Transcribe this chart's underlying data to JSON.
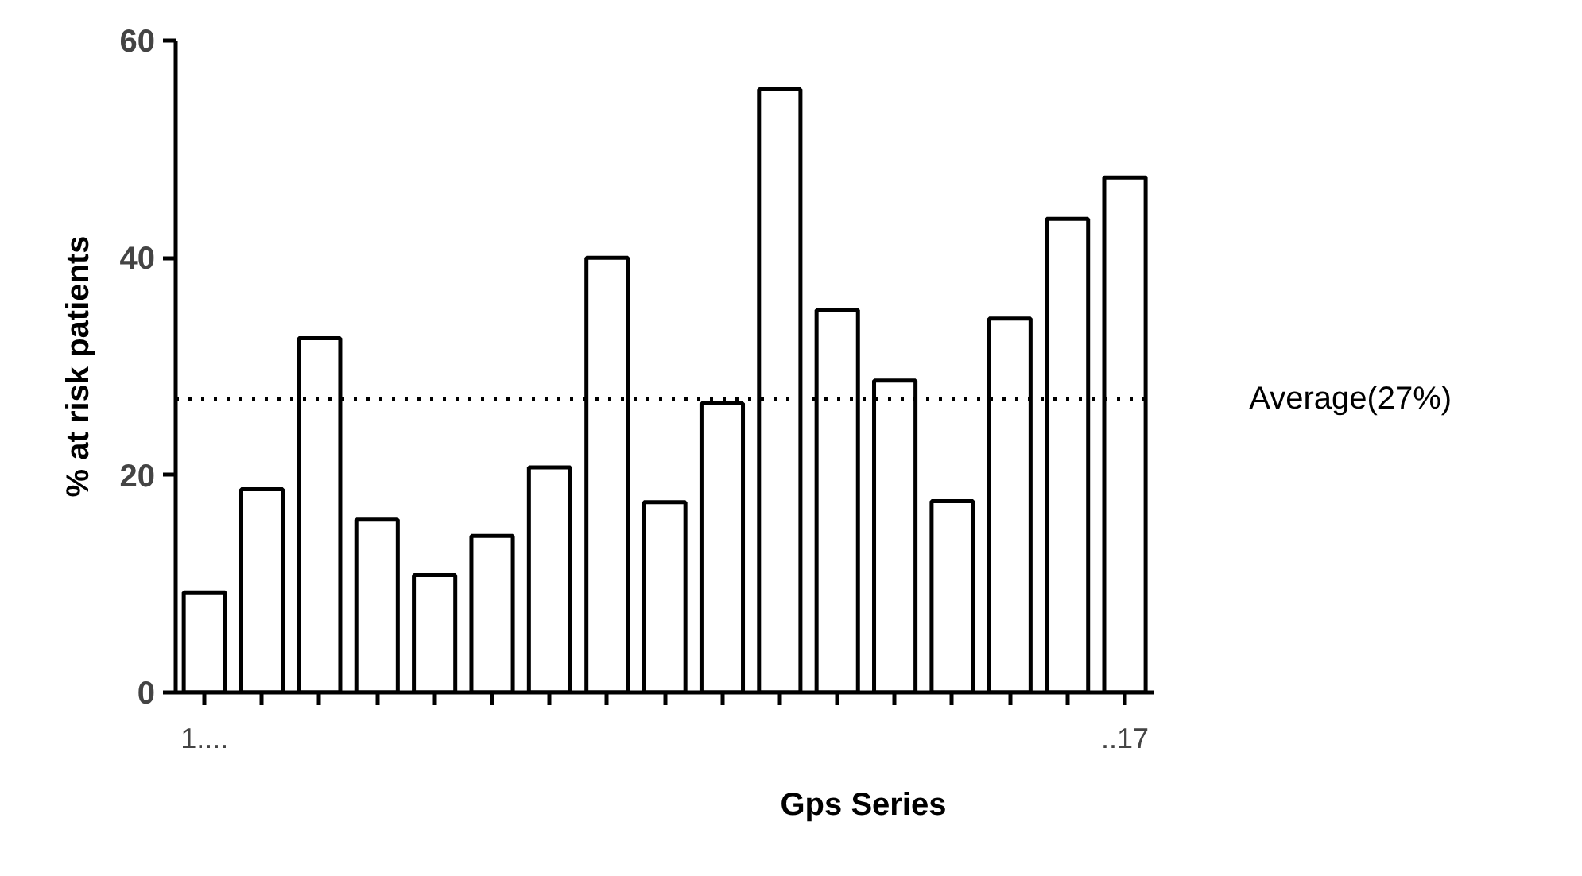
{
  "chart_data": {
    "type": "bar",
    "xlabel": "Gps Series",
    "ylabel": "% at risk patients",
    "categories": [
      "1....",
      null,
      null,
      null,
      null,
      null,
      null,
      null,
      null,
      null,
      null,
      null,
      null,
      null,
      null,
      null,
      "..17"
    ],
    "values": [
      9.2,
      18.7,
      32.6,
      15.9,
      10.8,
      14.4,
      20.7,
      40.0,
      17.5,
      26.6,
      55.5,
      35.2,
      28.7,
      17.6,
      34.4,
      43.6,
      47.4
    ],
    "color": "#ffffff",
    "ylim": [
      0,
      60
    ],
    "yticks": [
      0,
      20,
      40,
      60
    ],
    "grid": false,
    "ref_lines": [
      {
        "axis": "y",
        "value": 27,
        "label": "Average(27%)",
        "color": "#000000",
        "line_style": "dotted"
      }
    ]
  }
}
